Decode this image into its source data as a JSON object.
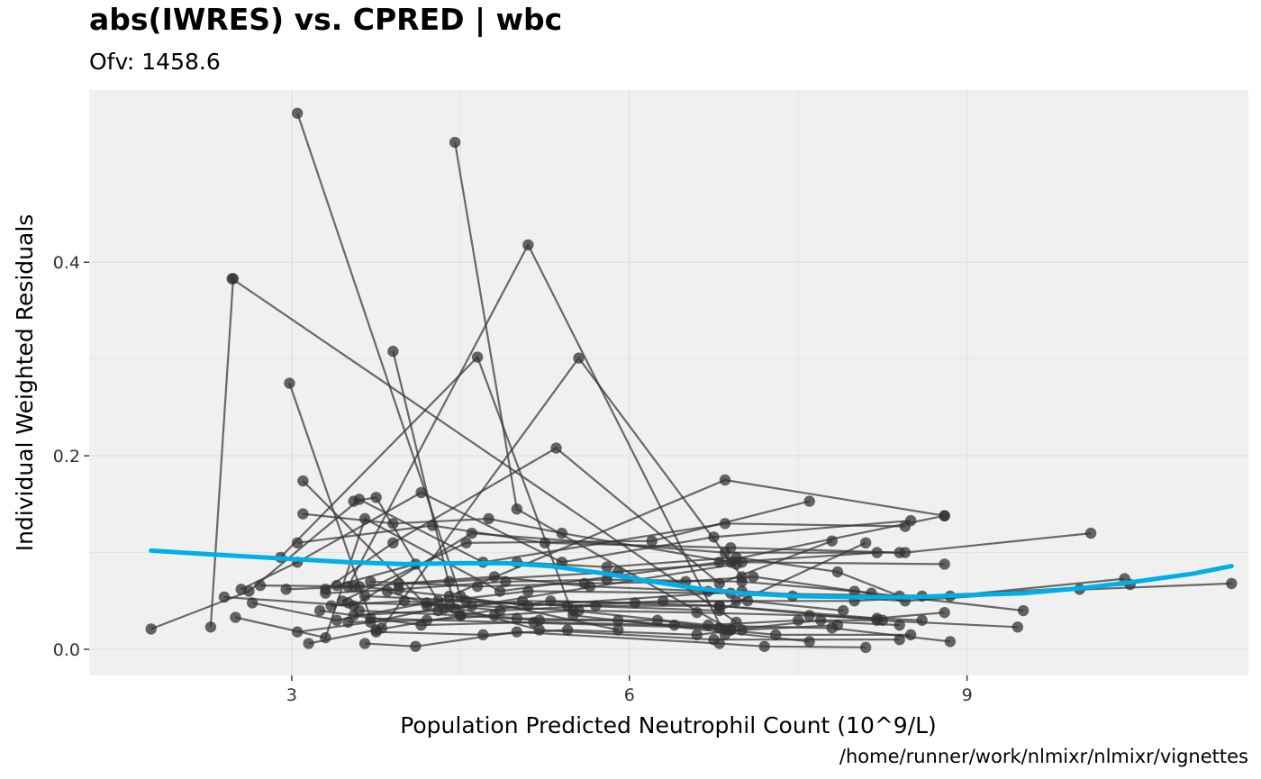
{
  "chart_data": {
    "type": "scatter",
    "title": "abs(IWRES) vs. CPRED | wbc",
    "subtitle": "Ofv: 1458.6",
    "caption": "/home/runner/work/nlmixr/nlmixr/vignettes",
    "xlabel": "Population Predicted Neutrophil Count (10^9/L)",
    "ylabel": "Individual Weighted Residuals",
    "xlim": [
      1.2,
      11.5
    ],
    "ylim": [
      -0.027,
      0.578
    ],
    "x_ticks": [
      3,
      6,
      9
    ],
    "x_tick_labels": [
      "3",
      "6",
      "9"
    ],
    "y_ticks": [
      0.0,
      0.2,
      0.4
    ],
    "y_tick_labels": [
      "0.0",
      "0.2",
      "0.4"
    ],
    "grid": true,
    "colors": {
      "panel_background": "#f0f0f0",
      "grid": "#e3e3e3",
      "points": "#333333",
      "lines": "#333333",
      "smooth": "#00aee8"
    },
    "series": [
      {
        "values": [
          [
            3.05,
            0.554
          ],
          [
            4.5,
            0.055
          ],
          [
            5.9,
            0.02
          ]
        ]
      },
      {
        "values": [
          [
            4.45,
            0.524
          ],
          [
            5.0,
            0.145
          ],
          [
            6.9,
            0.02
          ]
        ]
      },
      {
        "values": [
          [
            2.47,
            0.383
          ],
          [
            6.95,
            0.028
          ]
        ]
      },
      {
        "values": [
          [
            3.5,
            0.065
          ],
          [
            5.1,
            0.418
          ],
          [
            6.85,
            0.015
          ]
        ]
      },
      {
        "values": [
          [
            3.9,
            0.308
          ],
          [
            4.45,
            0.042
          ],
          [
            6.95,
            0.088
          ]
        ]
      },
      {
        "values": [
          [
            2.98,
            0.275
          ],
          [
            3.7,
            0.032
          ],
          [
            6.8,
            0.022
          ]
        ]
      },
      {
        "values": [
          [
            3.8,
            0.022
          ],
          [
            5.55,
            0.301
          ],
          [
            7.0,
            0.075
          ]
        ]
      },
      {
        "values": [
          [
            2.9,
            0.095
          ],
          [
            4.65,
            0.302
          ],
          [
            5.5,
            0.035
          ],
          [
            7.6,
            0.008
          ]
        ]
      },
      {
        "values": [
          [
            3.3,
            0.062
          ],
          [
            3.9,
            0.11
          ],
          [
            5.35,
            0.208
          ],
          [
            6.8,
            0.068
          ],
          [
            7.8,
            0.112
          ]
        ]
      },
      {
        "values": [
          [
            3.1,
            0.174
          ],
          [
            4.2,
            0.045
          ],
          [
            6.85,
            0.175
          ],
          [
            8.8,
            0.138
          ]
        ]
      },
      {
        "values": [
          [
            2.28,
            0.023
          ],
          [
            2.48,
            0.383
          ]
        ]
      },
      {
        "values": [
          [
            1.75,
            0.021
          ],
          [
            2.62,
            0.06
          ],
          [
            3.6,
            0.155
          ],
          [
            4.7,
            0.09
          ],
          [
            6.85,
            0.13
          ],
          [
            8.45,
            0.127
          ]
        ]
      },
      {
        "values": [
          [
            2.55,
            0.062
          ],
          [
            3.05,
            0.09
          ],
          [
            4.15,
            0.162
          ],
          [
            5.4,
            0.09
          ],
          [
            6.75,
            0.116
          ],
          [
            8.5,
            0.133
          ]
        ]
      },
      {
        "values": [
          [
            2.4,
            0.054
          ],
          [
            3.55,
            0.045
          ],
          [
            4.6,
            0.12
          ],
          [
            6.85,
            0.1
          ],
          [
            8.45,
            0.1
          ],
          [
            10.1,
            0.12
          ]
        ]
      },
      {
        "values": [
          [
            2.5,
            0.033
          ],
          [
            3.3,
            0.012
          ],
          [
            3.65,
            0.135
          ],
          [
            4.85,
            0.06
          ],
          [
            6.8,
            0.09
          ],
          [
            8.8,
            0.138
          ]
        ]
      },
      {
        "values": [
          [
            2.65,
            0.048
          ],
          [
            3.4,
            0.03
          ],
          [
            4.2,
            0.048
          ],
          [
            5.1,
            0.06
          ],
          [
            6.9,
            0.058
          ],
          [
            8.85,
            0.055
          ],
          [
            10.4,
            0.073
          ]
        ]
      },
      {
        "values": [
          [
            2.72,
            0.066
          ],
          [
            3.55,
            0.065
          ],
          [
            4.4,
            0.07
          ],
          [
            5.9,
            0.08
          ],
          [
            7.0,
            0.09
          ],
          [
            8.8,
            0.088
          ]
        ]
      },
      {
        "values": [
          [
            2.95,
            0.062
          ],
          [
            3.6,
            0.065
          ],
          [
            4.4,
            0.055
          ],
          [
            5.1,
            0.045
          ],
          [
            7.0,
            0.06
          ],
          [
            8.45,
            0.05
          ],
          [
            10.0,
            0.062
          ]
        ]
      },
      {
        "values": [
          [
            3.05,
            0.018
          ],
          [
            3.7,
            0.028
          ],
          [
            4.4,
            0.045
          ],
          [
            5.2,
            0.02
          ],
          [
            6.75,
            0.01
          ],
          [
            8.4,
            0.01
          ]
        ]
      },
      {
        "values": [
          [
            3.1,
            0.14
          ],
          [
            3.9,
            0.13
          ],
          [
            4.75,
            0.135
          ],
          [
            5.4,
            0.12
          ],
          [
            6.9,
            0.09
          ],
          [
            8.2,
            0.1
          ]
        ]
      },
      {
        "values": [
          [
            3.05,
            0.11
          ],
          [
            4.25,
            0.128
          ],
          [
            5.25,
            0.11
          ],
          [
            6.9,
            0.105
          ],
          [
            8.4,
            0.1
          ]
        ]
      },
      {
        "values": [
          [
            3.15,
            0.006
          ],
          [
            3.75,
            0.02
          ],
          [
            4.5,
            0.035
          ],
          [
            5.3,
            0.05
          ],
          [
            6.8,
            0.045
          ],
          [
            8.2,
            0.03
          ],
          [
            9.45,
            0.023
          ]
        ]
      },
      {
        "values": [
          [
            3.3,
            0.058
          ],
          [
            3.95,
            0.062
          ],
          [
            4.9,
            0.07
          ],
          [
            5.8,
            0.072
          ],
          [
            7.0,
            0.07
          ],
          [
            8.0,
            0.06
          ],
          [
            9.5,
            0.04
          ]
        ]
      },
      {
        "values": [
          [
            3.35,
            0.045
          ],
          [
            4.0,
            0.05
          ],
          [
            4.85,
            0.04
          ],
          [
            5.7,
            0.045
          ],
          [
            6.8,
            0.045
          ],
          [
            8.2,
            0.032
          ],
          [
            8.8,
            0.038
          ]
        ]
      },
      {
        "values": [
          [
            3.4,
            0.066
          ],
          [
            4.1,
            0.088
          ],
          [
            5.0,
            0.09
          ],
          [
            5.8,
            0.085
          ],
          [
            6.95,
            0.095
          ],
          [
            7.85,
            0.08
          ],
          [
            8.4,
            0.055
          ]
        ]
      },
      {
        "values": [
          [
            3.5,
            0.028
          ],
          [
            4.2,
            0.03
          ],
          [
            4.8,
            0.035
          ],
          [
            5.5,
            0.04
          ],
          [
            6.7,
            0.025
          ],
          [
            7.5,
            0.03
          ],
          [
            8.4,
            0.025
          ]
        ]
      },
      {
        "values": [
          [
            3.55,
            0.035
          ],
          [
            4.3,
            0.04
          ],
          [
            5.0,
            0.032
          ],
          [
            5.9,
            0.03
          ],
          [
            6.85,
            0.02
          ],
          [
            7.3,
            0.015
          ],
          [
            8.5,
            0.015
          ]
        ]
      },
      {
        "values": [
          [
            3.6,
            0.04
          ],
          [
            4.5,
            0.035
          ],
          [
            5.2,
            0.03
          ],
          [
            6.25,
            0.03
          ],
          [
            6.9,
            0.02
          ],
          [
            7.7,
            0.03
          ],
          [
            8.25,
            0.03
          ]
        ]
      },
      {
        "values": [
          [
            3.65,
            0.055
          ],
          [
            4.55,
            0.05
          ],
          [
            5.45,
            0.045
          ],
          [
            6.3,
            0.05
          ],
          [
            7.05,
            0.05
          ],
          [
            7.9,
            0.04
          ]
        ]
      },
      {
        "values": [
          [
            3.7,
            0.07
          ],
          [
            4.65,
            0.065
          ],
          [
            5.6,
            0.068
          ],
          [
            6.5,
            0.07
          ],
          [
            7.1,
            0.075
          ],
          [
            8.15,
            0.058
          ]
        ]
      },
      {
        "values": [
          [
            3.75,
            0.018
          ],
          [
            4.7,
            0.015
          ],
          [
            5.45,
            0.02
          ],
          [
            6.6,
            0.015
          ],
          [
            7.0,
            0.02
          ],
          [
            7.85,
            0.025
          ]
        ]
      },
      {
        "values": [
          [
            3.65,
            0.006
          ],
          [
            4.1,
            0.003
          ],
          [
            5.0,
            0.018
          ],
          [
            6.8,
            0.006
          ],
          [
            7.2,
            0.003
          ],
          [
            8.1,
            0.002
          ]
        ]
      },
      {
        "values": [
          [
            3.95,
            0.068
          ],
          [
            4.8,
            0.075
          ],
          [
            5.65,
            0.065
          ],
          [
            6.7,
            0.06
          ],
          [
            7.45,
            0.055
          ],
          [
            8.6,
            0.055
          ],
          [
            11.35,
            0.068
          ]
        ]
      },
      {
        "values": [
          [
            3.85,
            0.06
          ],
          [
            4.35,
            0.042
          ],
          [
            5.05,
            0.05
          ],
          [
            6.05,
            0.048
          ],
          [
            6.95,
            0.05
          ],
          [
            8.0,
            0.05
          ],
          [
            10.45,
            0.067
          ]
        ]
      },
      {
        "values": [
          [
            3.5,
            0.048
          ],
          [
            4.6,
            0.045
          ],
          [
            5.55,
            0.04
          ],
          [
            6.6,
            0.038
          ],
          [
            7.6,
            0.035
          ],
          [
            8.6,
            0.03
          ]
        ]
      },
      {
        "values": [
          [
            3.25,
            0.04
          ],
          [
            4.15,
            0.025
          ],
          [
            5.15,
            0.028
          ],
          [
            6.4,
            0.025
          ],
          [
            7.8,
            0.022
          ],
          [
            8.85,
            0.008
          ]
        ]
      },
      {
        "values": [
          [
            3.45,
            0.05
          ],
          [
            4.55,
            0.11
          ],
          [
            6.2,
            0.112
          ],
          [
            7.6,
            0.153
          ]
        ]
      },
      {
        "values": [
          [
            3.55,
            0.153
          ],
          [
            3.75,
            0.157
          ],
          [
            4.3,
            0.05
          ],
          [
            6.8,
            0.04
          ],
          [
            8.1,
            0.11
          ]
        ]
      }
    ],
    "smooth": [
      [
        1.75,
        0.102
      ],
      [
        2.3,
        0.098
      ],
      [
        2.9,
        0.094
      ],
      [
        3.5,
        0.09
      ],
      [
        4.0,
        0.088
      ],
      [
        4.5,
        0.089
      ],
      [
        4.9,
        0.089
      ],
      [
        5.3,
        0.086
      ],
      [
        5.8,
        0.078
      ],
      [
        6.2,
        0.07
      ],
      [
        6.6,
        0.063
      ],
      [
        7.0,
        0.058
      ],
      [
        7.5,
        0.055
      ],
      [
        8.0,
        0.054
      ],
      [
        8.5,
        0.054
      ],
      [
        9.0,
        0.056
      ],
      [
        9.5,
        0.058
      ],
      [
        10.0,
        0.063
      ],
      [
        10.5,
        0.07
      ],
      [
        11.0,
        0.078
      ],
      [
        11.35,
        0.086
      ]
    ]
  }
}
